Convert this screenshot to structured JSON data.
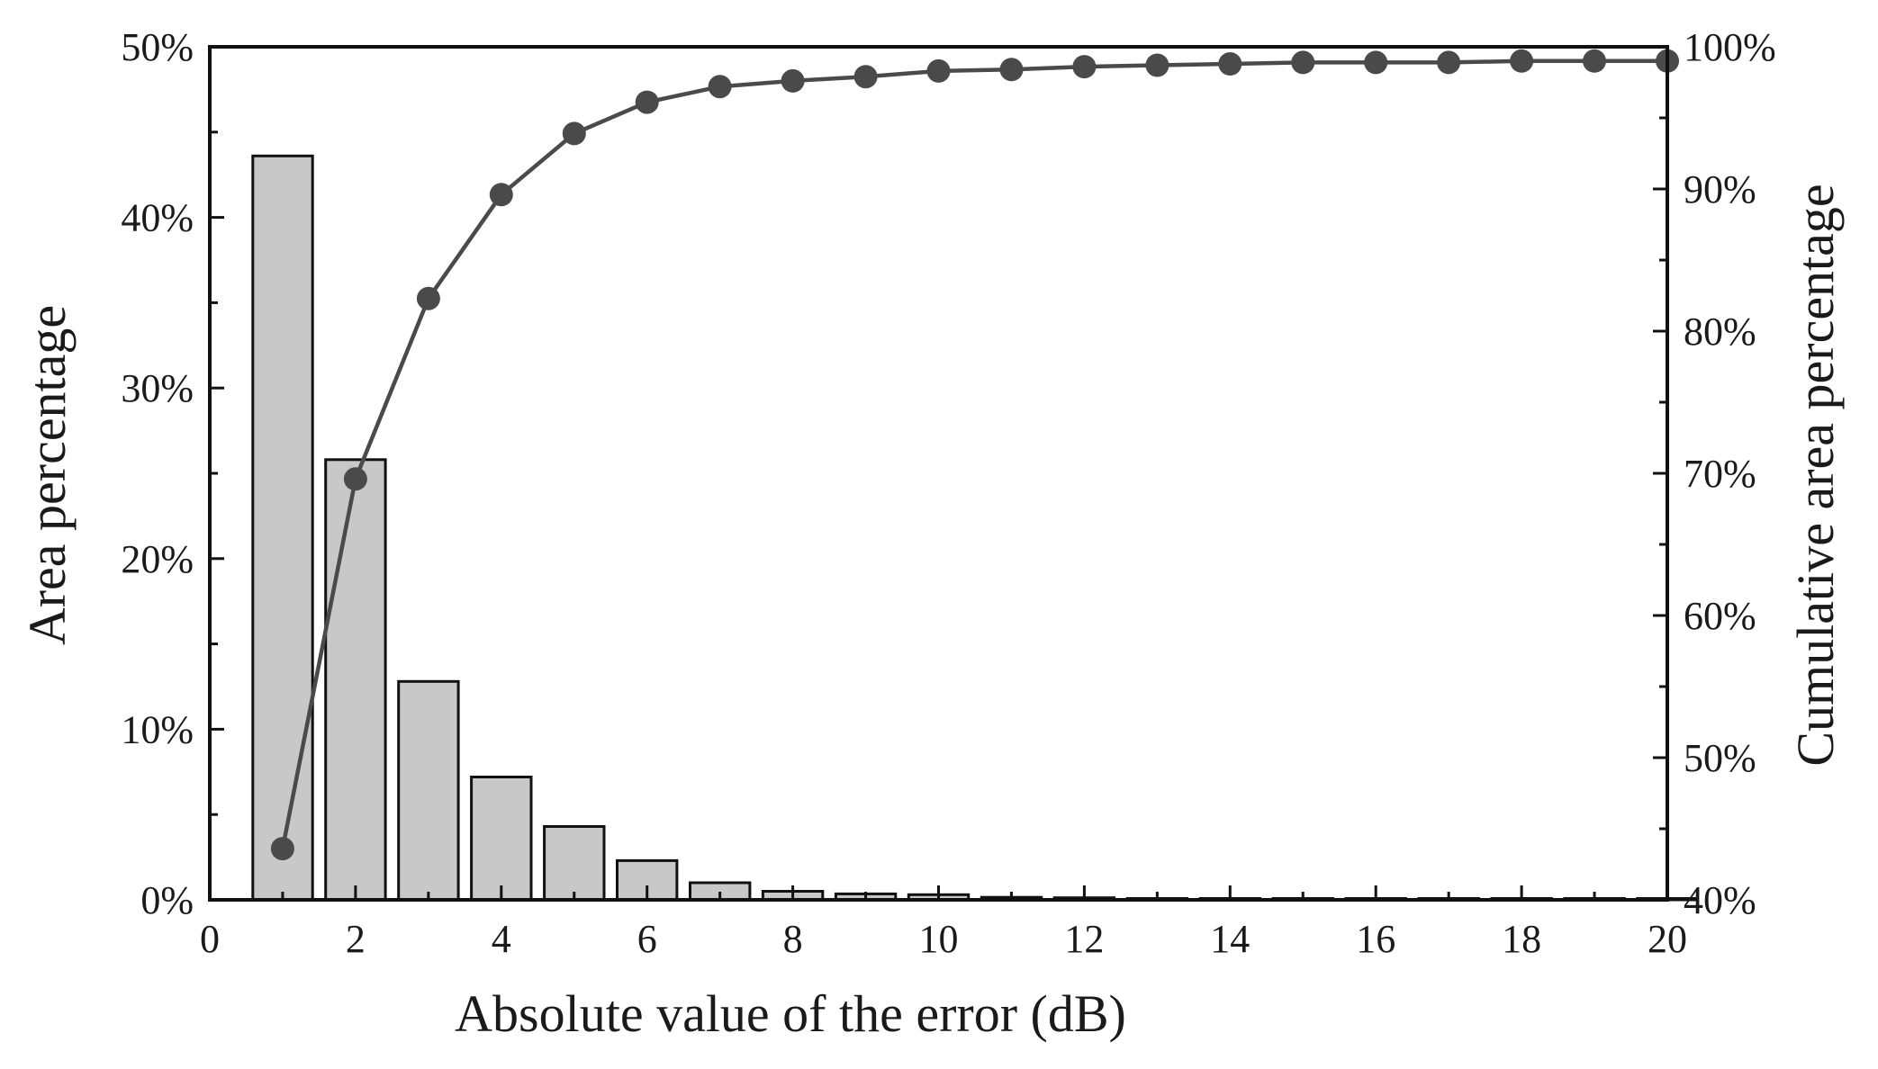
{
  "chart_data": {
    "type": "bar+line",
    "xlabel": "Absolute value of the error (dB)",
    "ylabel": "Area percentage",
    "y2label": "Cumulative area percentage",
    "xlim": [
      0,
      20
    ],
    "ylim": [
      0,
      50
    ],
    "y2lim": [
      40,
      100
    ],
    "x_ticks": [
      "0",
      "2",
      "4",
      "6",
      "8",
      "10",
      "12",
      "14",
      "16",
      "18",
      "20"
    ],
    "y_ticks": [
      "0%",
      "10%",
      "20%",
      "30%",
      "40%",
      "50%"
    ],
    "y2_ticks": [
      "40%",
      "50%",
      "60%",
      "70%",
      "80%",
      "90%",
      "100%"
    ],
    "grid": false,
    "colors": {
      "bar_fill": "#c8c8c8",
      "bar_stroke": "#111111",
      "line": "#4a4a4a",
      "marker": "#4a4a4a",
      "axis": "#111111"
    },
    "series": [
      {
        "kind": "bar",
        "axis": "left",
        "x": [
          1,
          2,
          3,
          4,
          5,
          6,
          7,
          8,
          9,
          10,
          11,
          12,
          13,
          14,
          15,
          16,
          17,
          18,
          19,
          20
        ],
        "values": [
          43.6,
          25.8,
          12.8,
          7.2,
          4.3,
          2.3,
          1.0,
          0.5,
          0.35,
          0.3,
          0.15,
          0.12,
          0.08,
          0.07,
          0.06,
          0.05,
          0.04,
          0.03,
          0.02,
          0.02
        ]
      },
      {
        "kind": "line",
        "axis": "right",
        "x": [
          1,
          2,
          3,
          4,
          5,
          6,
          7,
          8,
          9,
          10,
          11,
          12,
          13,
          14,
          15,
          16,
          17,
          18,
          19,
          20
        ],
        "values": [
          43.6,
          69.6,
          82.3,
          89.6,
          93.9,
          96.1,
          97.2,
          97.6,
          97.9,
          98.3,
          98.4,
          98.6,
          98.7,
          98.8,
          98.9,
          98.9,
          98.9,
          99.0,
          99.0,
          99.0
        ]
      }
    ]
  }
}
